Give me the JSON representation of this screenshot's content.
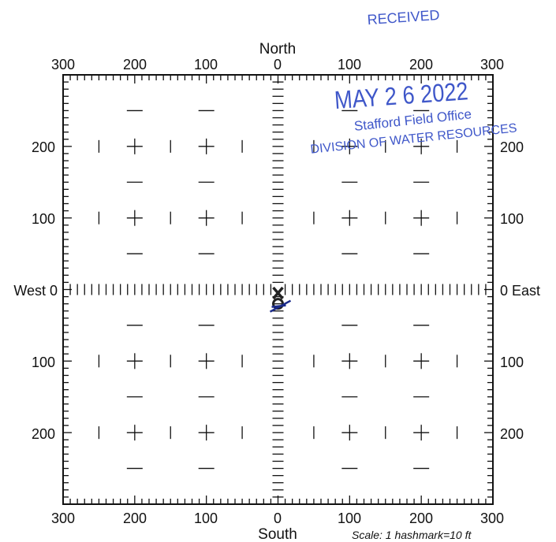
{
  "stamp": {
    "line1": "RECEIVED",
    "line2": "MAY 2 6 2022",
    "line3": "Stafford Field Office",
    "line4": "DIVISION OF WATER RESOURCES",
    "color": "#3f57c9"
  },
  "grid": {
    "range": 300,
    "top_ticks": [
      "300",
      "200",
      "100",
      "0",
      "100",
      "200",
      "300"
    ],
    "bottom_ticks": [
      "300",
      "200",
      "100",
      "0",
      "100",
      "200",
      "300"
    ],
    "left_ticks": [
      "200",
      "100",
      "100",
      "200"
    ],
    "right_ticks": [
      "200",
      "100",
      "100",
      "200"
    ],
    "north": "North",
    "south": "South",
    "west_label": "West 0",
    "east_label": "0 East",
    "scale": "Scale:  1 hashmark=10 ft"
  },
  "markers": {
    "ink_color": "#1a2a8a",
    "points_ft": [
      {
        "symbol": "X",
        "east": 0,
        "north": -5
      },
      {
        "symbol": "circle",
        "east": 0,
        "north": -20
      }
    ]
  },
  "colors": {
    "frame": "#111111",
    "text": "#111111"
  }
}
